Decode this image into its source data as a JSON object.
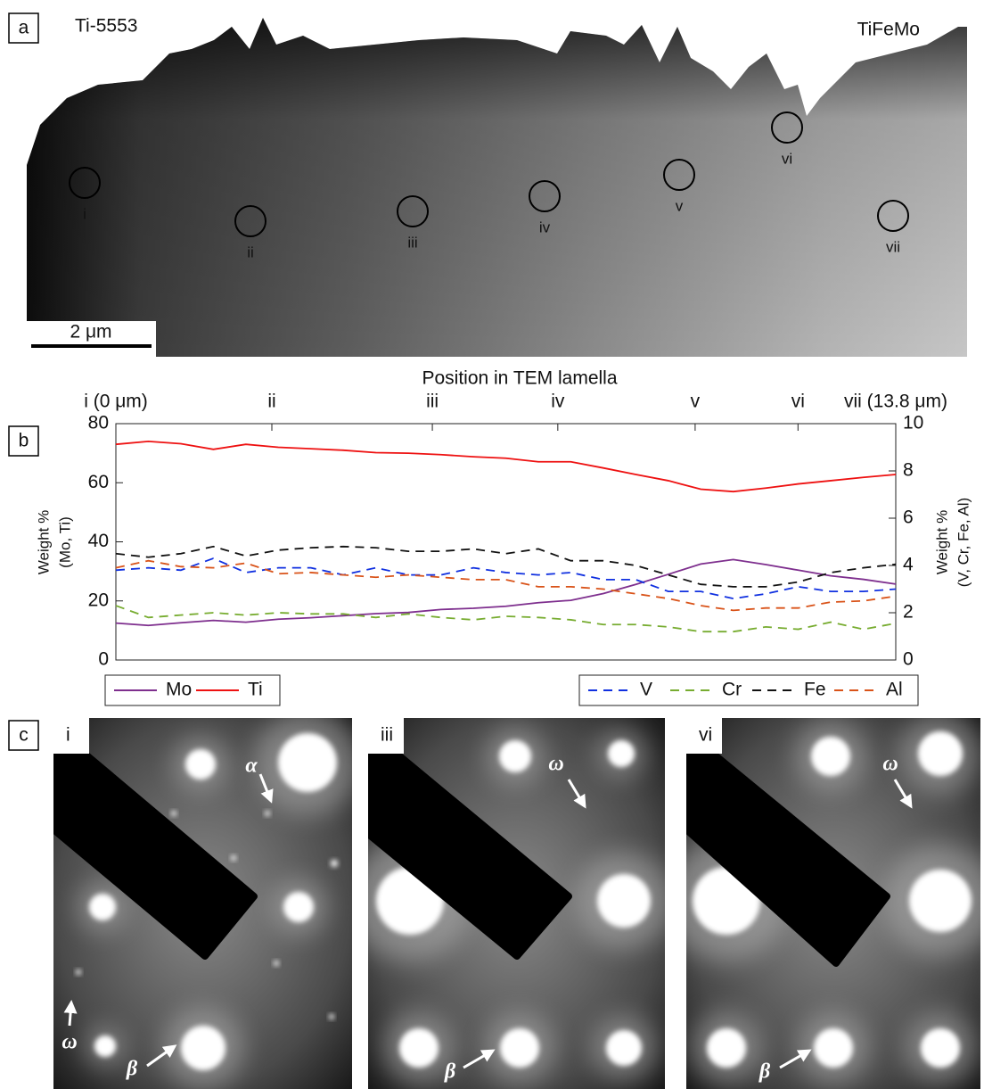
{
  "panel_a": {
    "label": "a",
    "left_label": "Ti-5553",
    "right_label": "TiFeMo",
    "markers": [
      "i",
      "ii",
      "iii",
      "iv",
      "v",
      "vi",
      "vii"
    ],
    "scale_bar": "2 μm"
  },
  "chart_data": {
    "type": "line",
    "panel_label": "b",
    "xlabel": "Position in TEM lamella",
    "ylabel": [
      "Weight %",
      "(Mo, Ti)"
    ],
    "y2label": [
      "Weight %",
      "(V, Cr, Fe, Al)"
    ],
    "x": [
      0,
      0.575,
      1.15,
      1.725,
      2.3,
      2.875,
      3.45,
      4.025,
      4.6,
      5.175,
      5.75,
      6.325,
      6.9,
      7.475,
      8.05,
      8.625,
      9.2,
      9.775,
      10.35,
      10.925,
      11.5,
      12.075,
      12.65,
      13.225,
      13.8
    ],
    "xlim": [
      0,
      13.8
    ],
    "xticks": [
      {
        "value": 0,
        "label": "i (0 μm)"
      },
      {
        "value": 2.76,
        "label": "ii"
      },
      {
        "value": 5.6,
        "label": "iii"
      },
      {
        "value": 7.82,
        "label": "iv"
      },
      {
        "value": 10.25,
        "label": "v"
      },
      {
        "value": 12.07,
        "label": "vi"
      },
      {
        "value": 13.8,
        "label": "vii (13.8 μm)"
      }
    ],
    "ylim": [
      0,
      80
    ],
    "yticks": [
      0,
      20,
      40,
      60,
      80
    ],
    "y2lim": [
      0,
      10
    ],
    "y2ticks": [
      0,
      2,
      4,
      6,
      8,
      10
    ],
    "series": [
      {
        "name": "Mo",
        "color": "#7e2f8e",
        "axis": "y",
        "line_style": "solid",
        "values": [
          12.5,
          11.7,
          12.6,
          13.4,
          12.8,
          13.8,
          14.3,
          15,
          15.7,
          16.1,
          17.1,
          17.5,
          18.2,
          19.4,
          20.2,
          22.5,
          25.6,
          29,
          32.5,
          34,
          32.3,
          30.4,
          28.5,
          27.3,
          25.7
        ]
      },
      {
        "name": "Ti",
        "color": "#ee1111",
        "axis": "y",
        "line_style": "solid",
        "values": [
          73,
          74,
          73.2,
          71.3,
          73,
          72,
          71.5,
          71,
          70.2,
          70,
          69.5,
          68.8,
          68.3,
          67.1,
          67.1,
          65,
          62.8,
          60.7,
          57.8,
          57,
          58.2,
          59.6,
          60.7,
          61.8,
          62.8
        ]
      },
      {
        "name": "V",
        "color": "#1030e0",
        "axis": "y2",
        "line_style": "dashed",
        "values": [
          3.8,
          3.9,
          3.8,
          4.3,
          3.7,
          3.9,
          3.9,
          3.6,
          3.9,
          3.6,
          3.6,
          3.9,
          3.7,
          3.6,
          3.7,
          3.4,
          3.4,
          2.9,
          2.9,
          2.6,
          2.8,
          3.1,
          2.9,
          2.9,
          3.0
        ]
      },
      {
        "name": "Cr",
        "color": "#77ac30",
        "axis": "y2",
        "line_style": "dashed",
        "values": [
          2.3,
          1.8,
          1.9,
          2.0,
          1.9,
          2.0,
          1.95,
          1.95,
          1.8,
          1.95,
          1.8,
          1.7,
          1.85,
          1.8,
          1.7,
          1.5,
          1.5,
          1.4,
          1.2,
          1.2,
          1.4,
          1.3,
          1.6,
          1.3,
          1.55
        ]
      },
      {
        "name": "Fe",
        "color": "#111111",
        "axis": "y2",
        "line_style": "dashed",
        "values": [
          4.5,
          4.35,
          4.5,
          4.8,
          4.4,
          4.65,
          4.75,
          4.8,
          4.75,
          4.6,
          4.6,
          4.7,
          4.5,
          4.7,
          4.2,
          4.2,
          4.0,
          3.6,
          3.2,
          3.1,
          3.1,
          3.3,
          3.7,
          3.9,
          4.05
        ]
      },
      {
        "name": "Al",
        "color": "#d95319",
        "axis": "y2",
        "line_style": "dashed",
        "values": [
          3.9,
          4.2,
          3.95,
          3.9,
          4.1,
          3.65,
          3.7,
          3.6,
          3.5,
          3.6,
          3.5,
          3.4,
          3.4,
          3.1,
          3.1,
          3.0,
          2.8,
          2.6,
          2.3,
          2.1,
          2.2,
          2.2,
          2.45,
          2.5,
          2.7
        ]
      }
    ]
  },
  "panel_c": {
    "label": "c",
    "panels": [
      {
        "label": "i",
        "annotations": [
          "α",
          "ω",
          "β"
        ]
      },
      {
        "label": "iii",
        "annotations": [
          "ω",
          "β"
        ]
      },
      {
        "label": "vi",
        "annotations": [
          "ω",
          "β"
        ]
      }
    ]
  }
}
